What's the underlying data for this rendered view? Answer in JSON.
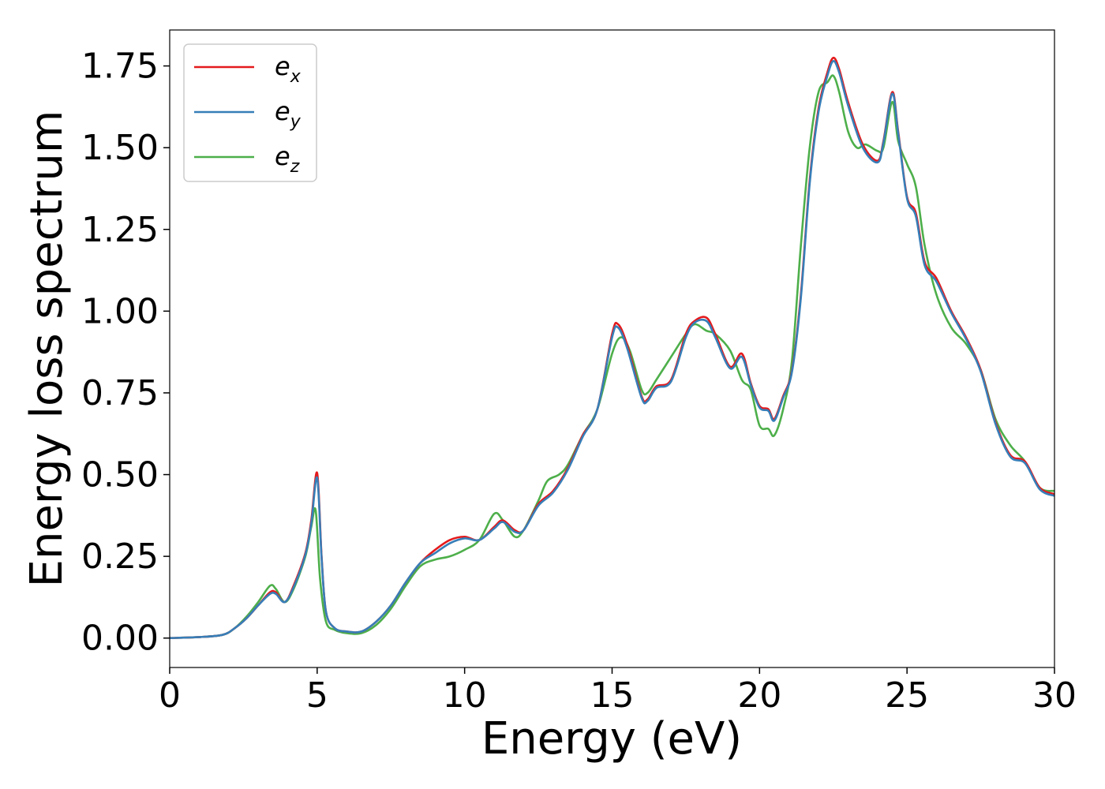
{
  "chart_data": {
    "type": "line",
    "xlabel": "Energy (eV)",
    "ylabel": "Energy loss spectrum",
    "xlim": [
      0,
      30
    ],
    "ylim": [
      -0.09,
      1.86
    ],
    "xticks": [
      0,
      5,
      10,
      15,
      20,
      25,
      30
    ],
    "xtick_labels": [
      "0",
      "5",
      "10",
      "15",
      "20",
      "25",
      "30"
    ],
    "yticks": [
      0.0,
      0.25,
      0.5,
      0.75,
      1.0,
      1.25,
      1.5,
      1.75
    ],
    "ytick_labels": [
      "0.00",
      "0.25",
      "0.50",
      "0.75",
      "1.00",
      "1.25",
      "1.50",
      "1.75"
    ],
    "grid": false,
    "legend_position": "top-left",
    "series": [
      {
        "name": "e_x",
        "label_main": "e",
        "label_sub": "x",
        "color": "#e41a1c",
        "x": [
          0,
          1,
          1.8,
          2.2,
          2.6,
          3.0,
          3.4,
          3.6,
          3.9,
          4.2,
          4.6,
          4.8,
          5.0,
          5.15,
          5.3,
          5.6,
          6.0,
          6.5,
          7.0,
          7.5,
          8.0,
          8.5,
          9.0,
          9.5,
          10.0,
          10.5,
          11.0,
          11.3,
          11.7,
          12.0,
          12.5,
          13.0,
          13.5,
          14.0,
          14.5,
          15.0,
          15.2,
          15.5,
          16.0,
          16.2,
          16.5,
          17.0,
          17.5,
          17.8,
          18.2,
          18.5,
          19.0,
          19.4,
          19.7,
          20.0,
          20.3,
          20.5,
          20.8,
          21.1,
          21.4,
          21.7,
          22.0,
          22.3,
          22.5,
          22.7,
          23.0,
          23.5,
          24.0,
          24.2,
          24.5,
          24.7,
          25.0,
          25.3,
          25.6,
          26.0,
          26.5,
          27.0,
          27.5,
          28.0,
          28.5,
          29.0,
          29.5,
          30.0
        ],
        "values": [
          0.0,
          0.003,
          0.01,
          0.03,
          0.06,
          0.1,
          0.14,
          0.14,
          0.11,
          0.16,
          0.26,
          0.36,
          0.505,
          0.25,
          0.08,
          0.03,
          0.02,
          0.02,
          0.05,
          0.1,
          0.17,
          0.23,
          0.27,
          0.3,
          0.31,
          0.3,
          0.34,
          0.36,
          0.33,
          0.33,
          0.41,
          0.45,
          0.52,
          0.62,
          0.7,
          0.93,
          0.96,
          0.9,
          0.74,
          0.73,
          0.77,
          0.79,
          0.93,
          0.97,
          0.98,
          0.93,
          0.83,
          0.87,
          0.78,
          0.71,
          0.7,
          0.67,
          0.74,
          0.82,
          1.05,
          1.4,
          1.62,
          1.73,
          1.775,
          1.74,
          1.64,
          1.51,
          1.46,
          1.52,
          1.67,
          1.55,
          1.35,
          1.3,
          1.15,
          1.1,
          1.0,
          0.92,
          0.82,
          0.66,
          0.56,
          0.54,
          0.46,
          0.44
        ]
      },
      {
        "name": "e_y",
        "label_main": "e",
        "label_sub": "y",
        "color": "#377eb8",
        "x": [
          0,
          1,
          1.8,
          2.2,
          2.6,
          3.0,
          3.4,
          3.6,
          3.9,
          4.2,
          4.6,
          4.8,
          5.0,
          5.15,
          5.3,
          5.6,
          6.0,
          6.5,
          7.0,
          7.5,
          8.0,
          8.5,
          9.0,
          9.5,
          10.0,
          10.5,
          11.0,
          11.3,
          11.7,
          12.0,
          12.5,
          13.0,
          13.5,
          14.0,
          14.5,
          15.0,
          15.2,
          15.5,
          16.0,
          16.2,
          16.5,
          17.0,
          17.5,
          17.8,
          18.2,
          18.5,
          19.0,
          19.4,
          19.7,
          20.0,
          20.3,
          20.5,
          20.8,
          21.1,
          21.4,
          21.7,
          22.0,
          22.3,
          22.5,
          22.7,
          23.0,
          23.5,
          24.0,
          24.2,
          24.5,
          24.7,
          25.0,
          25.3,
          25.6,
          26.0,
          26.5,
          27.0,
          27.5,
          28.0,
          28.5,
          29.0,
          29.5,
          30.0
        ],
        "values": [
          0.0,
          0.003,
          0.01,
          0.03,
          0.06,
          0.1,
          0.135,
          0.135,
          0.11,
          0.155,
          0.255,
          0.35,
          0.49,
          0.245,
          0.08,
          0.03,
          0.02,
          0.02,
          0.05,
          0.1,
          0.17,
          0.23,
          0.26,
          0.29,
          0.305,
          0.3,
          0.335,
          0.355,
          0.325,
          0.33,
          0.405,
          0.445,
          0.515,
          0.615,
          0.7,
          0.92,
          0.95,
          0.89,
          0.735,
          0.725,
          0.765,
          0.785,
          0.92,
          0.965,
          0.97,
          0.92,
          0.825,
          0.86,
          0.775,
          0.705,
          0.695,
          0.665,
          0.735,
          0.815,
          1.04,
          1.39,
          1.61,
          1.72,
          1.765,
          1.73,
          1.63,
          1.5,
          1.455,
          1.515,
          1.665,
          1.545,
          1.345,
          1.29,
          1.14,
          1.09,
          0.995,
          0.915,
          0.815,
          0.655,
          0.555,
          0.535,
          0.455,
          0.435
        ]
      },
      {
        "name": "e_z",
        "label_main": "e",
        "label_sub": "z",
        "color": "#4daf4a",
        "x": [
          0,
          1,
          1.8,
          2.2,
          2.6,
          3.0,
          3.4,
          3.6,
          3.9,
          4.2,
          4.6,
          4.8,
          4.95,
          5.1,
          5.3,
          5.6,
          6.0,
          6.5,
          7.0,
          7.5,
          8.0,
          8.5,
          9.0,
          9.5,
          10.0,
          10.5,
          11.0,
          11.3,
          11.7,
          12.0,
          12.5,
          12.8,
          13.2,
          13.5,
          14.0,
          14.5,
          15.0,
          15.3,
          15.6,
          16.0,
          16.2,
          16.5,
          17.0,
          17.5,
          17.8,
          18.2,
          18.5,
          19.0,
          19.4,
          19.7,
          20.0,
          20.3,
          20.5,
          20.8,
          21.1,
          21.4,
          21.7,
          22.0,
          22.3,
          22.5,
          22.7,
          23.0,
          23.3,
          23.6,
          24.0,
          24.2,
          24.5,
          24.7,
          25.0,
          25.3,
          25.6,
          26.0,
          26.5,
          27.0,
          27.5,
          28.0,
          28.5,
          29.0,
          29.5,
          30.0
        ],
        "values": [
          0.0,
          0.003,
          0.01,
          0.03,
          0.065,
          0.11,
          0.16,
          0.15,
          0.11,
          0.15,
          0.25,
          0.34,
          0.39,
          0.18,
          0.05,
          0.025,
          0.015,
          0.015,
          0.04,
          0.09,
          0.16,
          0.22,
          0.24,
          0.25,
          0.27,
          0.3,
          0.38,
          0.36,
          0.31,
          0.33,
          0.42,
          0.48,
          0.5,
          0.53,
          0.62,
          0.7,
          0.87,
          0.92,
          0.88,
          0.76,
          0.75,
          0.79,
          0.86,
          0.93,
          0.96,
          0.94,
          0.93,
          0.88,
          0.79,
          0.76,
          0.65,
          0.64,
          0.62,
          0.7,
          0.85,
          1.2,
          1.5,
          1.67,
          1.7,
          1.72,
          1.67,
          1.55,
          1.5,
          1.51,
          1.49,
          1.5,
          1.64,
          1.52,
          1.45,
          1.38,
          1.2,
          1.05,
          0.95,
          0.9,
          0.82,
          0.67,
          0.59,
          0.54,
          0.46,
          0.45
        ]
      }
    ]
  }
}
